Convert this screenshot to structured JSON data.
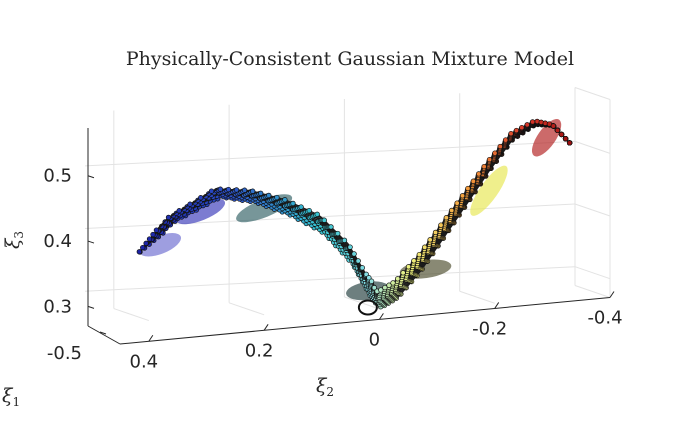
{
  "chart_data": {
    "type": "scatter",
    "projection": "3d",
    "title": "Physically-Consistent Gaussian Mixture Model",
    "xlabel": {
      "symbol": "ξ",
      "subscript": "1"
    },
    "ylabel": {
      "symbol": "ξ",
      "subscript": "2"
    },
    "zlabel": {
      "symbol": "ξ",
      "subscript": "3"
    },
    "x_ticks": [
      "-0.5"
    ],
    "y_ticks": [
      "0.4",
      "0.2",
      "0",
      "-0.2",
      "-0.4"
    ],
    "z_ticks": [
      "0.5",
      "0.4",
      "0.3"
    ],
    "ylim": [
      -0.4,
      0.45
    ],
    "zlim": [
      0.27,
      0.57
    ],
    "grid": true,
    "colormap": [
      "#1a1aa0",
      "#2c52c8",
      "#36c4d0",
      "#8fe0e6",
      "#f2f27a",
      "#f39a3a",
      "#d9382a",
      "#a01010"
    ],
    "gaussian_color_range": [
      "#3a3ab8",
      "#2f6f70",
      "#e8e85a",
      "#b81818"
    ],
    "n_trajectories": 12,
    "trajectory_path_y": [
      0.45,
      0.36,
      0.28,
      0.22,
      0.16,
      0.1,
      0.05,
      0.02,
      0.0,
      -0.03,
      -0.07,
      -0.11,
      -0.15,
      -0.19,
      -0.23,
      -0.27,
      -0.3,
      -0.33
    ],
    "trajectory_path_z": [
      0.35,
      0.43,
      0.468,
      0.46,
      0.44,
      0.41,
      0.36,
      0.31,
      0.285,
      0.3,
      0.34,
      0.39,
      0.44,
      0.49,
      0.535,
      0.555,
      0.55,
      0.52
    ],
    "gaussians": [
      {
        "y": 0.38,
        "z": 0.39,
        "color": "#6a6ad0"
      },
      {
        "y": 0.31,
        "z": 0.44,
        "color": "#3535b8"
      },
      {
        "y": 0.2,
        "z": 0.44,
        "color": "#2e5d62"
      },
      {
        "y": 0.02,
        "z": 0.3,
        "color": "#1f3a3a"
      },
      {
        "y": -0.08,
        "z": 0.33,
        "color": "#4a4a2a"
      },
      {
        "y": -0.19,
        "z": 0.45,
        "color": "#e6e64e"
      },
      {
        "y": -0.29,
        "z": 0.53,
        "color": "#b01a1a"
      }
    ]
  }
}
